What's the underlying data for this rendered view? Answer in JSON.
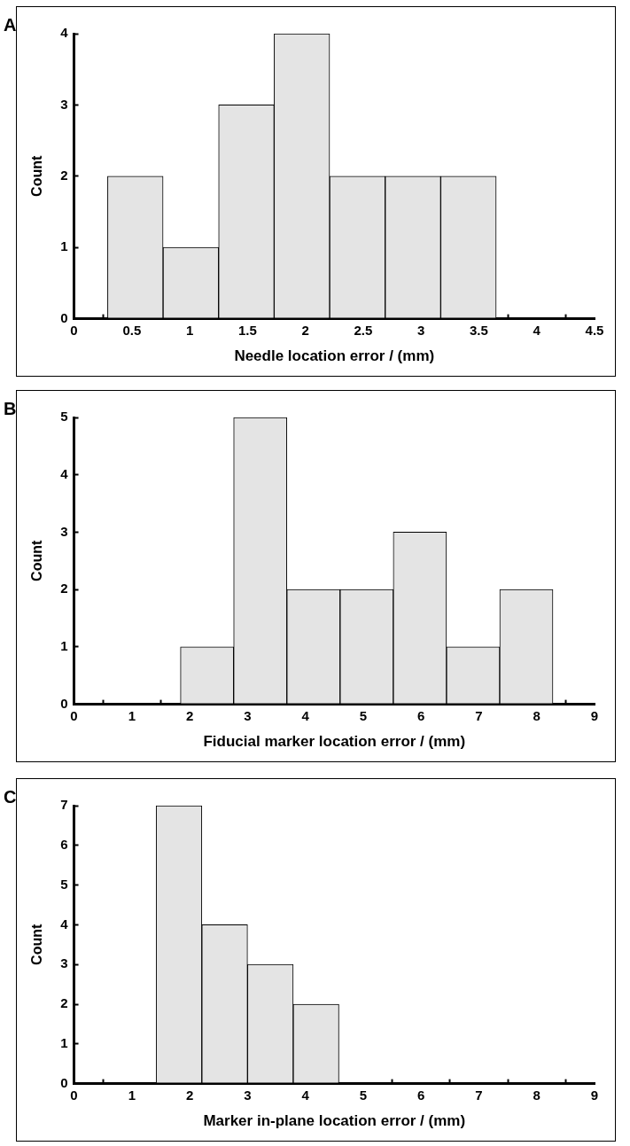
{
  "chart_data": [
    {
      "type": "histogram",
      "title": "A",
      "xlabel": "Needle location error / (mm)",
      "ylabel": "Count",
      "color": "#e4e4e4",
      "bins": [
        0.29,
        0.77,
        1.25,
        1.73,
        2.21,
        2.69,
        3.17,
        3.65
      ],
      "values": [
        2,
        1,
        3,
        4,
        2,
        2,
        2
      ],
      "xlim": [
        0,
        4.5
      ],
      "xticks": [
        0,
        0.5,
        1,
        1.5,
        2,
        2.5,
        3,
        3.5,
        4,
        4.5
      ],
      "ylim": [
        0,
        4
      ],
      "yticks": [
        0,
        1,
        2,
        3,
        4
      ]
    },
    {
      "type": "histogram",
      "title": "B",
      "xlabel": "Fiducial marker location error / (mm)",
      "ylabel": "Count",
      "color": "#e4e4e4",
      "bins": [
        1.84,
        2.76,
        3.68,
        4.6,
        5.52,
        6.44,
        7.36,
        8.28
      ],
      "values": [
        1,
        5,
        2,
        2,
        3,
        1,
        2
      ],
      "xlim": [
        0,
        9
      ],
      "xticks": [
        0,
        1,
        2,
        3,
        4,
        5,
        6,
        7,
        8,
        9
      ],
      "ylim": [
        0,
        5
      ],
      "yticks": [
        0,
        1,
        2,
        3,
        4,
        5
      ]
    },
    {
      "type": "histogram",
      "title": "C",
      "xlabel": "Marker in-plane location error / (mm)",
      "ylabel": "Count",
      "color": "#e4e4e4",
      "bins": [
        1.42,
        2.21,
        3,
        3.79,
        4.58
      ],
      "values": [
        7,
        4,
        3,
        2
      ],
      "xlim": [
        0,
        9
      ],
      "xticks": [
        0,
        1,
        2,
        3,
        4,
        5,
        6,
        7,
        8,
        9
      ],
      "ylim": [
        0,
        7
      ],
      "yticks": [
        0,
        1,
        2,
        3,
        4,
        5,
        6,
        7
      ]
    }
  ]
}
